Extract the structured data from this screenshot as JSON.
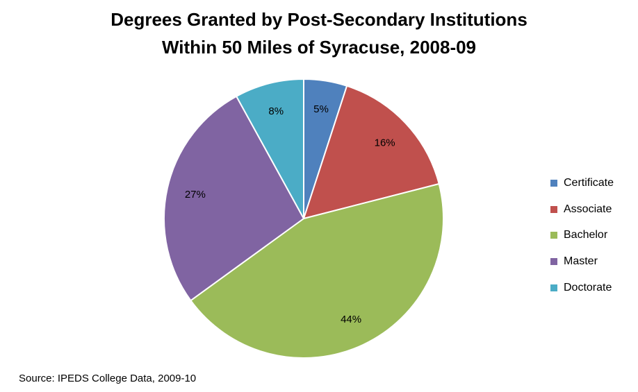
{
  "chart_data": {
    "type": "pie",
    "title_lines": [
      "Degrees Granted by Post-Secondary Institutions",
      "Within 50 Miles of Syracuse, 2008-09"
    ],
    "categories": [
      "Certificate",
      "Associate",
      "Bachelor",
      "Master",
      "Doctorate"
    ],
    "values": [
      5,
      16,
      44,
      27,
      8
    ],
    "data_labels": [
      "5%",
      "16%",
      "44%",
      "27%",
      "8%"
    ],
    "colors": [
      "#4f81bd",
      "#c0504d",
      "#9bbb59",
      "#8064a2",
      "#4bacc6"
    ],
    "legend_position": "right",
    "start_angle": "12 o'clock",
    "direction": "clockwise"
  },
  "source": "Source: IPEDS College Data, 2009-10"
}
